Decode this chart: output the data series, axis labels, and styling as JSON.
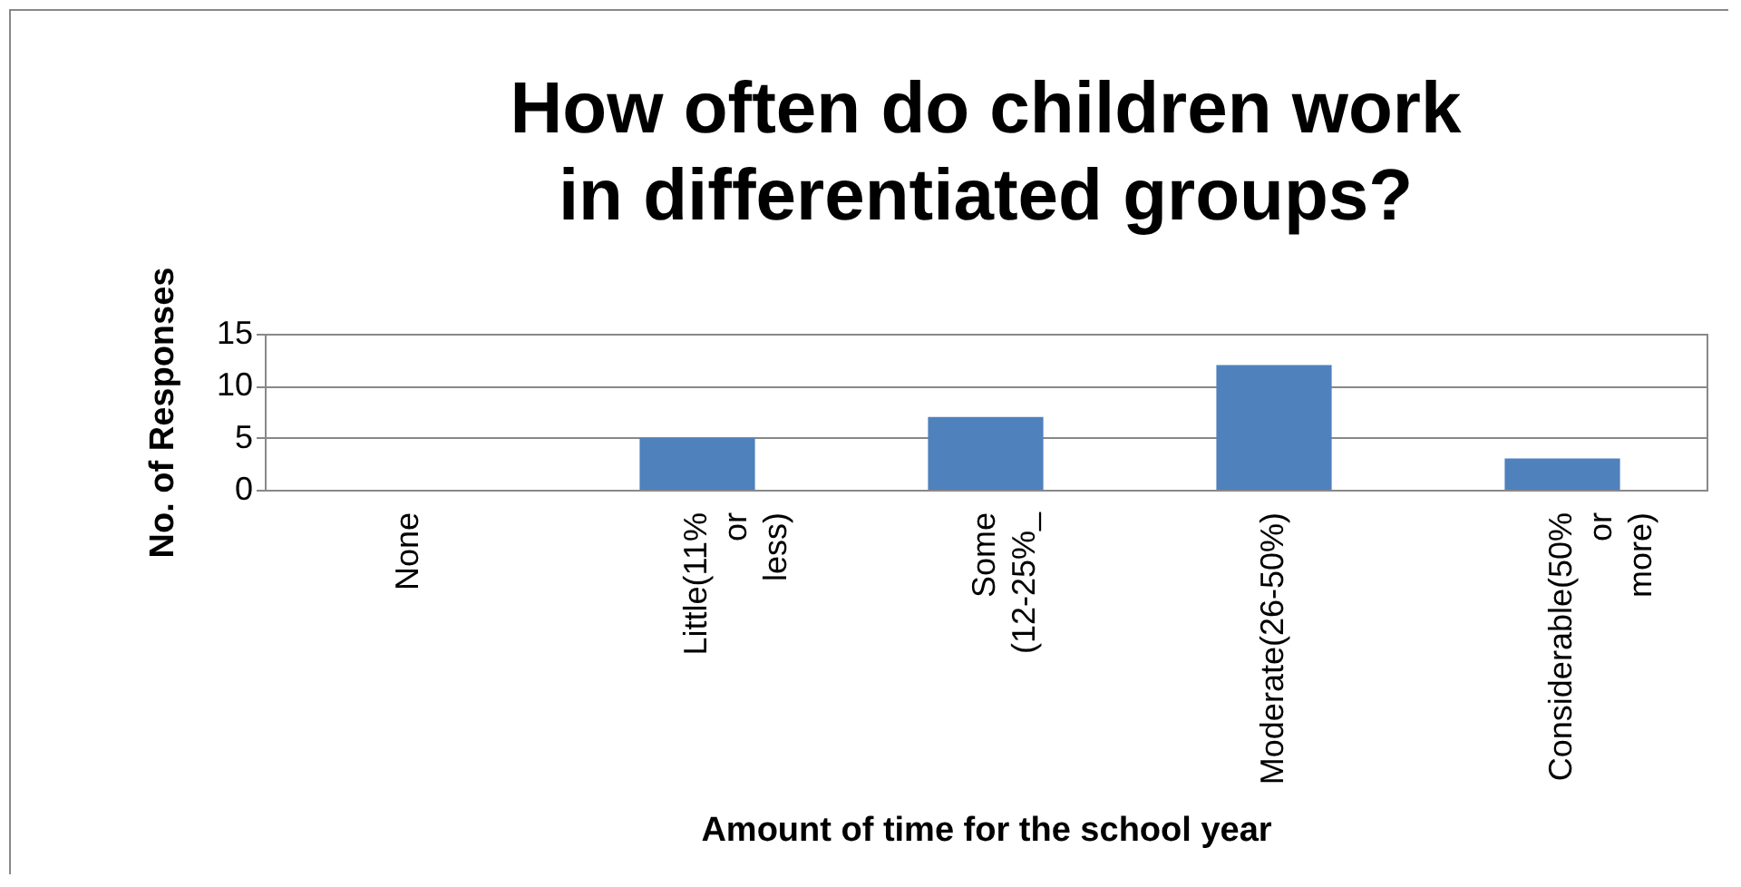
{
  "chart_data": {
    "type": "bar",
    "title": "How often do children work in differentiated groups?",
    "xlabel": "Amount of time for the school year",
    "ylabel": "No. of Responses",
    "categories": [
      "None",
      "Little(11% or less)",
      "Some (12-25%_",
      "Moderate(26-50%)",
      "Considerable(50% or more)"
    ],
    "values": [
      0,
      5,
      7,
      12,
      3
    ],
    "color": "#4f81bd",
    "ylim": [
      0,
      15
    ],
    "yticks": [
      0,
      5,
      10,
      15
    ],
    "grid": "y"
  }
}
